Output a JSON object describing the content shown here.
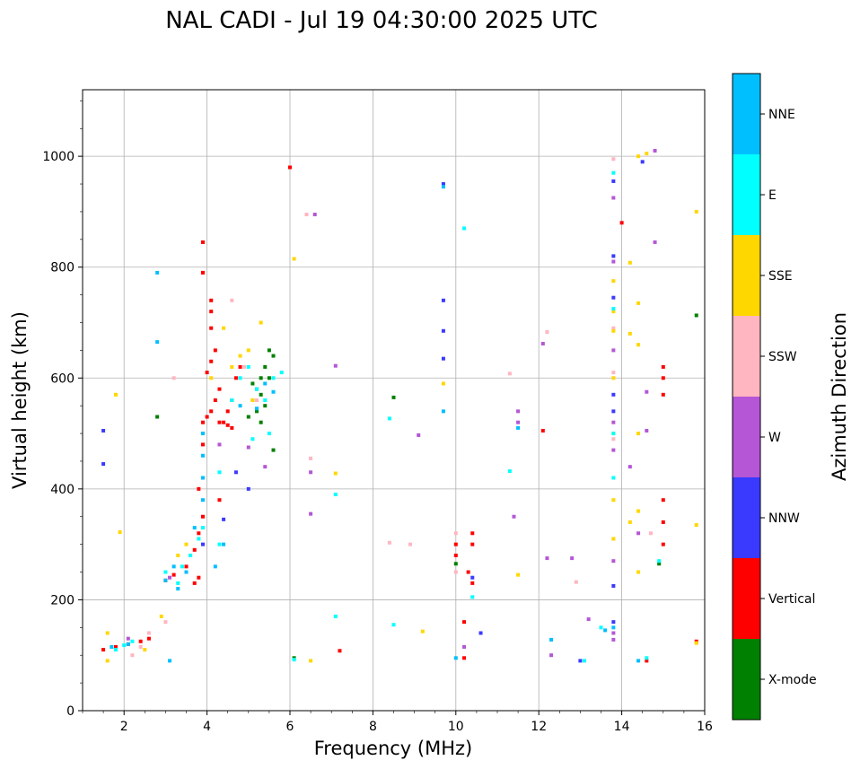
{
  "chart_data": {
    "type": "scatter",
    "title": "NAL CADI - Jul 19 04:30:00 2025 UTC",
    "xlabel": "Frequency (MHz)",
    "ylabel": "Virtual height (km)",
    "xlim": [
      1,
      16
    ],
    "ylim": [
      0,
      1120
    ],
    "xticks": [
      2,
      4,
      6,
      8,
      10,
      12,
      14,
      16
    ],
    "yticks": [
      0,
      200,
      400,
      600,
      800,
      1000
    ],
    "grid": true,
    "colorbar": {
      "label": "Azimuth Direction",
      "categories": [
        {
          "name": "X-mode",
          "color": "#008000"
        },
        {
          "name": "Vertical",
          "color": "#ff0000"
        },
        {
          "name": "NNW",
          "color": "#3a3aff"
        },
        {
          "name": "W",
          "color": "#b556d6"
        },
        {
          "name": "SSW",
          "color": "#ffb6c1"
        },
        {
          "name": "SSE",
          "color": "#ffd700"
        },
        {
          "name": "E",
          "color": "#00ffff"
        },
        {
          "name": "NNE",
          "color": "#00bfff"
        }
      ]
    },
    "series": [
      {
        "name": "X-mode",
        "points": [
          [
            5.1,
            560
          ],
          [
            5.2,
            580
          ],
          [
            5.3,
            600
          ],
          [
            5.3,
            570
          ],
          [
            5.4,
            620
          ],
          [
            5.5,
            650
          ],
          [
            5.6,
            640
          ],
          [
            5.2,
            540
          ],
          [
            5.4,
            550
          ],
          [
            5.0,
            530
          ],
          [
            5.5,
            600
          ],
          [
            5.3,
            520
          ],
          [
            2.8,
            530
          ],
          [
            8.5,
            565
          ],
          [
            10.0,
            265
          ],
          [
            14.9,
            265
          ],
          [
            15.8,
            713
          ],
          [
            6.1,
            95
          ],
          [
            5.6,
            470
          ],
          [
            5.1,
            590
          ]
        ]
      },
      {
        "name": "Vertical",
        "points": [
          [
            1.5,
            110
          ],
          [
            1.8,
            115
          ],
          [
            2.1,
            120
          ],
          [
            2.4,
            125
          ],
          [
            2.6,
            130
          ],
          [
            3.0,
            235
          ],
          [
            3.2,
            245
          ],
          [
            3.5,
            260
          ],
          [
            3.7,
            290
          ],
          [
            3.8,
            240
          ],
          [
            3.8,
            320
          ],
          [
            3.9,
            350
          ],
          [
            3.8,
            400
          ],
          [
            3.9,
            480
          ],
          [
            3.9,
            520
          ],
          [
            4.0,
            530
          ],
          [
            4.1,
            540
          ],
          [
            4.2,
            560
          ],
          [
            4.3,
            580
          ],
          [
            4.0,
            610
          ],
          [
            4.1,
            630
          ],
          [
            4.2,
            650
          ],
          [
            4.1,
            690
          ],
          [
            4.1,
            720
          ],
          [
            4.1,
            740
          ],
          [
            3.9,
            845
          ],
          [
            3.9,
            790
          ],
          [
            4.4,
            520
          ],
          [
            4.5,
            515
          ],
          [
            4.6,
            510
          ],
          [
            4.5,
            540
          ],
          [
            4.6,
            560
          ],
          [
            4.7,
            600
          ],
          [
            4.8,
            620
          ],
          [
            4.3,
            520
          ],
          [
            10.0,
            300
          ],
          [
            10.0,
            280
          ],
          [
            10.4,
            300
          ],
          [
            10.4,
            320
          ],
          [
            10.3,
            250
          ],
          [
            10.4,
            230
          ],
          [
            10.2,
            160
          ],
          [
            10.2,
            95
          ],
          [
            14.0,
            880
          ],
          [
            12.1,
            505
          ],
          [
            7.2,
            108
          ],
          [
            15.0,
            300
          ],
          [
            15.0,
            340
          ],
          [
            15.0,
            380
          ],
          [
            15.0,
            570
          ],
          [
            15.0,
            600
          ],
          [
            15.0,
            620
          ],
          [
            14.6,
            90
          ],
          [
            15.8,
            125
          ],
          [
            6.0,
            980
          ],
          [
            4.3,
            380
          ],
          [
            3.7,
            230
          ]
        ]
      },
      {
        "name": "NNW",
        "points": [
          [
            1.5,
            505
          ],
          [
            1.5,
            445
          ],
          [
            3.9,
            300
          ],
          [
            4.4,
            345
          ],
          [
            9.7,
            950
          ],
          [
            9.7,
            740
          ],
          [
            9.7,
            685
          ],
          [
            9.7,
            635
          ],
          [
            10.4,
            240
          ],
          [
            13.8,
            955
          ],
          [
            13.8,
            820
          ],
          [
            13.8,
            745
          ],
          [
            13.8,
            570
          ],
          [
            13.8,
            540
          ],
          [
            13.8,
            225
          ],
          [
            14.5,
            990
          ],
          [
            13.0,
            90
          ],
          [
            10.6,
            140
          ],
          [
            5.0,
            400
          ],
          [
            4.7,
            430
          ],
          [
            13.8,
            160
          ]
        ]
      },
      {
        "name": "W",
        "points": [
          [
            2.1,
            130
          ],
          [
            3.1,
            240
          ],
          [
            4.3,
            480
          ],
          [
            5.0,
            475
          ],
          [
            5.4,
            440
          ],
          [
            6.5,
            355
          ],
          [
            6.5,
            430
          ],
          [
            6.6,
            895
          ],
          [
            7.1,
            622
          ],
          [
            9.1,
            497
          ],
          [
            10.2,
            115
          ],
          [
            12.2,
            275
          ],
          [
            12.3,
            100
          ],
          [
            12.8,
            275
          ],
          [
            13.2,
            165
          ],
          [
            13.8,
            925
          ],
          [
            13.8,
            810
          ],
          [
            13.8,
            650
          ],
          [
            13.8,
            520
          ],
          [
            13.8,
            470
          ],
          [
            13.8,
            270
          ],
          [
            14.2,
            440
          ],
          [
            14.6,
            575
          ],
          [
            14.6,
            505
          ],
          [
            14.8,
            845
          ],
          [
            14.8,
            1010
          ],
          [
            11.4,
            350
          ],
          [
            12.1,
            662
          ],
          [
            14.4,
            320
          ],
          [
            13.8,
            128
          ],
          [
            13.8,
            140
          ],
          [
            11.5,
            540
          ],
          [
            11.5,
            520
          ]
        ]
      },
      {
        "name": "SSW",
        "points": [
          [
            2.2,
            100
          ],
          [
            2.4,
            115
          ],
          [
            2.6,
            140
          ],
          [
            3.0,
            160
          ],
          [
            4.6,
            740
          ],
          [
            4.9,
            620
          ],
          [
            5.2,
            560
          ],
          [
            6.5,
            455
          ],
          [
            6.4,
            895
          ],
          [
            8.4,
            303
          ],
          [
            8.9,
            300
          ],
          [
            10.0,
            320
          ],
          [
            10.0,
            250
          ],
          [
            11.3,
            608
          ],
          [
            12.9,
            232
          ],
          [
            13.8,
            995
          ],
          [
            13.8,
            690
          ],
          [
            13.8,
            610
          ],
          [
            13.8,
            490
          ],
          [
            14.7,
            320
          ],
          [
            12.2,
            683
          ],
          [
            3.2,
            600
          ]
        ]
      },
      {
        "name": "SSE",
        "points": [
          [
            1.6,
            90
          ],
          [
            1.6,
            140
          ],
          [
            1.8,
            570
          ],
          [
            1.9,
            322
          ],
          [
            2.5,
            110
          ],
          [
            2.9,
            170
          ],
          [
            3.3,
            280
          ],
          [
            3.5,
            300
          ],
          [
            4.1,
            600
          ],
          [
            4.4,
            690
          ],
          [
            4.6,
            620
          ],
          [
            4.8,
            640
          ],
          [
            5.0,
            650
          ],
          [
            5.3,
            700
          ],
          [
            5.1,
            560
          ],
          [
            6.1,
            815
          ],
          [
            6.5,
            90
          ],
          [
            7.1,
            428
          ],
          [
            9.2,
            143
          ],
          [
            9.7,
            590
          ],
          [
            11.5,
            245
          ],
          [
            13.8,
            775
          ],
          [
            13.8,
            720
          ],
          [
            13.8,
            685
          ],
          [
            13.8,
            600
          ],
          [
            13.8,
            500
          ],
          [
            13.8,
            380
          ],
          [
            13.8,
            310
          ],
          [
            14.2,
            680
          ],
          [
            14.2,
            340
          ],
          [
            14.4,
            735
          ],
          [
            14.4,
            660
          ],
          [
            14.4,
            500
          ],
          [
            14.4,
            360
          ],
          [
            14.4,
            250
          ],
          [
            14.6,
            1005
          ],
          [
            15.8,
            900
          ],
          [
            15.8,
            335
          ],
          [
            15.8,
            122
          ],
          [
            14.2,
            808
          ],
          [
            14.4,
            1000
          ]
        ]
      },
      {
        "name": "E",
        "points": [
          [
            1.8,
            110
          ],
          [
            2.0,
            118
          ],
          [
            2.2,
            125
          ],
          [
            3.3,
            230
          ],
          [
            3.4,
            260
          ],
          [
            3.6,
            280
          ],
          [
            3.8,
            310
          ],
          [
            3.9,
            330
          ],
          [
            4.3,
            300
          ],
          [
            4.6,
            560
          ],
          [
            4.8,
            600
          ],
          [
            5.0,
            620
          ],
          [
            5.2,
            580
          ],
          [
            5.4,
            560
          ],
          [
            5.6,
            600
          ],
          [
            5.8,
            610
          ],
          [
            5.5,
            500
          ],
          [
            5.1,
            490
          ],
          [
            7.1,
            390
          ],
          [
            7.1,
            170
          ],
          [
            8.5,
            155
          ],
          [
            8.4,
            527
          ],
          [
            10.2,
            870
          ],
          [
            10.4,
            205
          ],
          [
            11.3,
            432
          ],
          [
            13.1,
            90
          ],
          [
            13.5,
            150
          ],
          [
            13.8,
            970
          ],
          [
            13.8,
            725
          ],
          [
            13.8,
            500
          ],
          [
            13.8,
            420
          ],
          [
            14.9,
            270
          ],
          [
            14.6,
            95
          ],
          [
            6.1,
            92
          ],
          [
            4.3,
            430
          ],
          [
            3.0,
            250
          ]
        ]
      },
      {
        "name": "NNE",
        "points": [
          [
            1.7,
            115
          ],
          [
            2.1,
            120
          ],
          [
            3.1,
            90
          ],
          [
            3.2,
            260
          ],
          [
            3.3,
            220
          ],
          [
            3.5,
            250
          ],
          [
            3.7,
            330
          ],
          [
            3.9,
            380
          ],
          [
            3.9,
            420
          ],
          [
            3.9,
            460
          ],
          [
            3.9,
            500
          ],
          [
            4.4,
            300
          ],
          [
            5.2,
            545
          ],
          [
            5.4,
            590
          ],
          [
            5.6,
            575
          ],
          [
            2.8,
            665
          ],
          [
            2.8,
            790
          ],
          [
            4.2,
            260
          ],
          [
            4.8,
            550
          ],
          [
            9.7,
            540
          ],
          [
            9.7,
            945
          ],
          [
            10.0,
            95
          ],
          [
            12.3,
            128
          ],
          [
            13.6,
            145
          ],
          [
            13.8,
            150
          ],
          [
            14.4,
            90
          ],
          [
            11.5,
            510
          ],
          [
            3.0,
            235
          ]
        ]
      }
    ]
  }
}
